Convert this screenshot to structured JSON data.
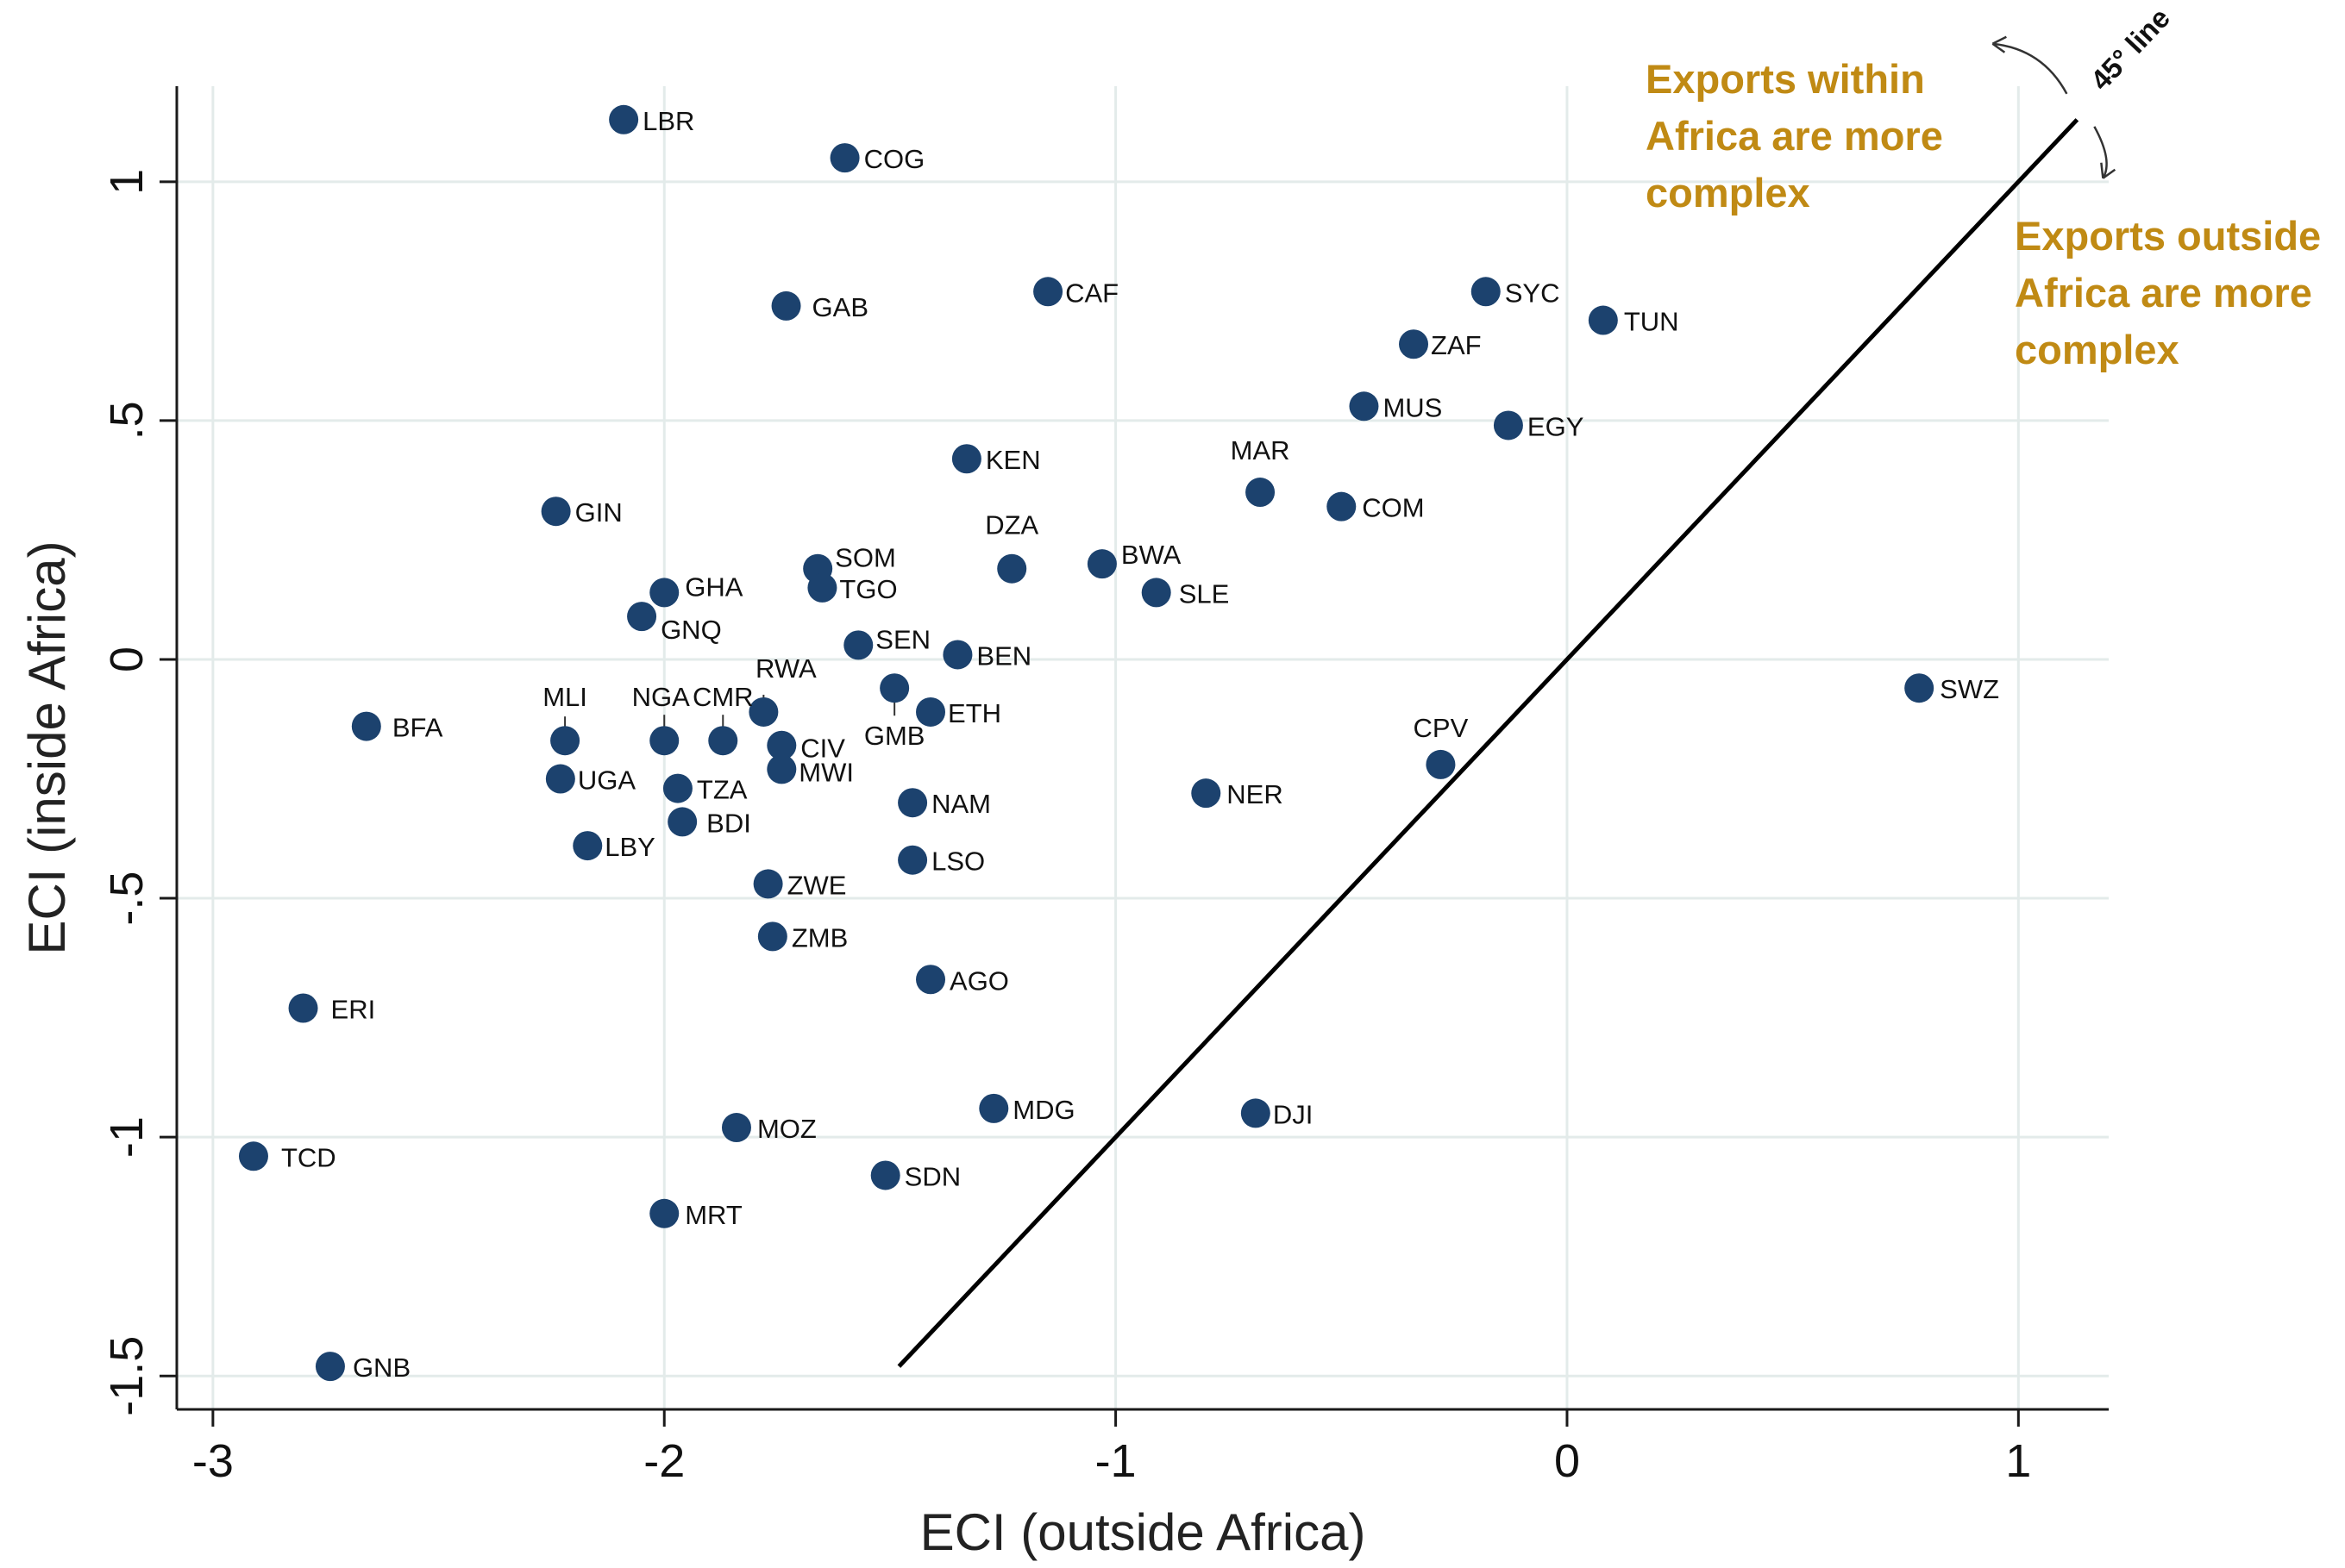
{
  "chart_data": {
    "type": "scatter",
    "xlabel": "ECI (outside Africa)",
    "ylabel": "ECI (inside Africa)",
    "xlim": [
      -3.08,
      1.2
    ],
    "ylim": [
      -1.57,
      1.2
    ],
    "x_ticks": [
      {
        "value": -3,
        "label": "-3"
      },
      {
        "value": -2,
        "label": "-2"
      },
      {
        "value": -1,
        "label": "-1"
      },
      {
        "value": 0,
        "label": "0"
      },
      {
        "value": 1,
        "label": "1"
      }
    ],
    "y_ticks": [
      {
        "value": -1.5,
        "label": "-1.5"
      },
      {
        "value": -1,
        "label": "-1"
      },
      {
        "value": -0.5,
        "label": "-.5"
      },
      {
        "value": 0,
        "label": "0"
      },
      {
        "value": 0.5,
        "label": ".5"
      },
      {
        "value": 1,
        "label": "1"
      }
    ],
    "grid": true,
    "marker_color": "#1c426e",
    "reference_line": {
      "label": "45° line",
      "x": [
        -1.48,
        1.13
      ],
      "y": [
        -1.48,
        1.13
      ]
    },
    "annotations": [
      {
        "text": "Exports within Africa are more complex",
        "lines": [
          "Exports within",
          "Africa are more",
          "complex"
        ],
        "color": "#c08a14",
        "position": "upper-left of 45° line"
      },
      {
        "text": "Exports outside Africa are more complex",
        "lines": [
          "Exports outside",
          "Africa are more",
          "complex"
        ],
        "color": "#c08a14",
        "position": "lower-right of 45° line"
      }
    ],
    "points": [
      {
        "label": "LBR",
        "x": -2.09,
        "y": 1.13
      },
      {
        "label": "COG",
        "x": -1.6,
        "y": 1.05
      },
      {
        "label": "CAF",
        "x": -1.15,
        "y": 0.77
      },
      {
        "label": "GAB",
        "x": -1.73,
        "y": 0.74
      },
      {
        "label": "SYC",
        "x": -0.18,
        "y": 0.77
      },
      {
        "label": "TUN",
        "x": 0.08,
        "y": 0.71
      },
      {
        "label": "ZAF",
        "x": -0.34,
        "y": 0.66
      },
      {
        "label": "MUS",
        "x": -0.45,
        "y": 0.53
      },
      {
        "label": "EGY",
        "x": -0.13,
        "y": 0.49
      },
      {
        "label": "KEN",
        "x": -1.33,
        "y": 0.42
      },
      {
        "label": "MAR",
        "x": -0.68,
        "y": 0.35
      },
      {
        "label": "COM",
        "x": -0.5,
        "y": 0.32
      },
      {
        "label": "GIN",
        "x": -2.24,
        "y": 0.31
      },
      {
        "label": "DZA",
        "x": -1.23,
        "y": 0.19
      },
      {
        "label": "BWA",
        "x": -1.03,
        "y": 0.2
      },
      {
        "label": "SOM",
        "x": -1.66,
        "y": 0.19
      },
      {
        "label": "TGO",
        "x": -1.65,
        "y": 0.15
      },
      {
        "label": "SLE",
        "x": -0.91,
        "y": 0.14
      },
      {
        "label": "GHA",
        "x": -2.0,
        "y": 0.14
      },
      {
        "label": "GNQ",
        "x": -2.05,
        "y": 0.09
      },
      {
        "label": "SEN",
        "x": -1.57,
        "y": 0.03
      },
      {
        "label": "BEN",
        "x": -1.35,
        "y": 0.01
      },
      {
        "label": "GMB",
        "x": -1.49,
        "y": -0.06
      },
      {
        "label": "RWA",
        "x": -1.78,
        "y": -0.11
      },
      {
        "label": "ETH",
        "x": -1.41,
        "y": -0.11
      },
      {
        "label": "SWZ",
        "x": 0.78,
        "y": -0.06
      },
      {
        "label": "BFA",
        "x": -2.66,
        "y": -0.14
      },
      {
        "label": "MLI",
        "x": -2.22,
        "y": -0.17
      },
      {
        "label": "NGA",
        "x": -2.0,
        "y": -0.17
      },
      {
        "label": "CMR",
        "x": -1.87,
        "y": -0.17
      },
      {
        "label": "CIV",
        "x": -1.74,
        "y": -0.18
      },
      {
        "label": "MWI",
        "x": -1.74,
        "y": -0.23
      },
      {
        "label": "CPV",
        "x": -0.28,
        "y": -0.22
      },
      {
        "label": "UGA",
        "x": -2.23,
        "y": -0.25
      },
      {
        "label": "TZA",
        "x": -1.97,
        "y": -0.27
      },
      {
        "label": "NER",
        "x": -0.8,
        "y": -0.28
      },
      {
        "label": "NAM",
        "x": -1.45,
        "y": -0.3
      },
      {
        "label": "BDI",
        "x": -1.96,
        "y": -0.34
      },
      {
        "label": "LBY",
        "x": -2.17,
        "y": -0.39
      },
      {
        "label": "LSO",
        "x": -1.45,
        "y": -0.42
      },
      {
        "label": "ZWE",
        "x": -1.77,
        "y": -0.47
      },
      {
        "label": "ZMB",
        "x": -1.76,
        "y": -0.58
      },
      {
        "label": "AGO",
        "x": -1.41,
        "y": -0.67
      },
      {
        "label": "ERI",
        "x": -2.8,
        "y": -0.73
      },
      {
        "label": "MDG",
        "x": -1.27,
        "y": -0.94
      },
      {
        "label": "DJI",
        "x": -0.69,
        "y": -0.95
      },
      {
        "label": "MOZ",
        "x": -1.84,
        "y": -0.98
      },
      {
        "label": "TCD",
        "x": -2.91,
        "y": -1.04
      },
      {
        "label": "SDN",
        "x": -1.51,
        "y": -1.08
      },
      {
        "label": "MRT",
        "x": -2.0,
        "y": -1.16
      },
      {
        "label": "GNB",
        "x": -2.74,
        "y": -1.48
      }
    ]
  }
}
